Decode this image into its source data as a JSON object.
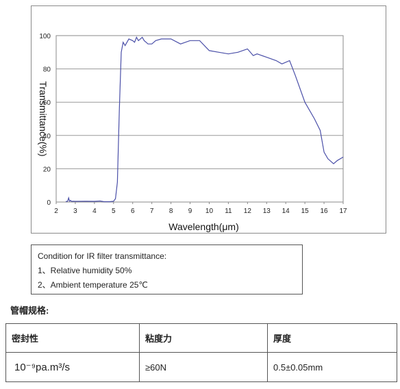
{
  "chart_data": {
    "type": "line",
    "title": "",
    "xlabel": "Wavelength(μm)",
    "ylabel": "Transmittance(%)",
    "xlim": [
      2,
      17
    ],
    "ylim": [
      0,
      100
    ],
    "xticks": [
      2,
      3,
      4,
      5,
      6,
      7,
      8,
      9,
      10,
      11,
      12,
      13,
      14,
      15,
      16,
      17
    ],
    "yticks": [
      0,
      20,
      40,
      60,
      80,
      100
    ],
    "grid": "horizontal",
    "line_color": "#4a4fa8",
    "series": [
      {
        "x": [
          2.5,
          2.6,
          2.65,
          2.7,
          2.75,
          2.8,
          2.9,
          3.0,
          3.5,
          4.0,
          4.3,
          4.5,
          4.8,
          5.0,
          5.1,
          5.2,
          5.3,
          5.4,
          5.5,
          5.6,
          5.7,
          5.8,
          6.0,
          6.1,
          6.2,
          6.3,
          6.4,
          6.5,
          6.6,
          6.7,
          6.8,
          7.0,
          7.2,
          7.5,
          8.0,
          8.5,
          9.0,
          9.5,
          10.0,
          10.5,
          11.0,
          11.5,
          12.0,
          12.3,
          12.5,
          13.0,
          13.5,
          13.8,
          14.0,
          14.2,
          14.5,
          15.0,
          15.5,
          15.8,
          16.0,
          16.2,
          16.5,
          16.7,
          17.0
        ],
        "y": [
          0.3,
          0.5,
          2.5,
          0.5,
          1.0,
          0.4,
          0.5,
          0.4,
          0.5,
          0.4,
          0.6,
          0.2,
          0.2,
          0.5,
          2,
          12,
          55,
          90,
          96,
          94,
          96,
          98,
          97,
          96,
          99,
          97,
          98,
          99,
          97,
          96,
          95,
          95,
          97,
          98,
          98,
          95,
          97,
          97,
          91,
          90,
          89,
          90,
          92,
          88,
          89,
          87,
          85,
          83,
          84,
          85,
          76,
          60,
          50,
          43,
          30,
          26,
          23,
          25,
          27
        ]
      }
    ]
  },
  "conditions": {
    "heading": "Condition for IR filter transmittance:",
    "item1": "1、Relative humidity 50%",
    "item2": "2、Ambient temperature 25℃"
  },
  "spec": {
    "heading": "管帽规格:",
    "headers": [
      "密封性",
      "粘度力",
      "厚度"
    ],
    "row": [
      "10⁻⁹pa.m³/s",
      "≥60N",
      "0.5±0.05mm"
    ]
  }
}
